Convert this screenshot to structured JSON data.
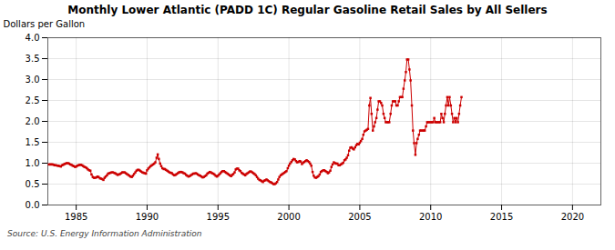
{
  "chart_data": {
    "type": "line",
    "title": "Monthly Lower Atlantic (PADD 1C) Regular Gasoline Retail Sales by All Sellers",
    "y_label": "Dollars per Gallon",
    "annotations": [
      "Source: U.S. Energy Information Administration"
    ],
    "color": "#CC0000",
    "marker": "square",
    "line_style": "solid",
    "grid": true,
    "xlim": [
      1983.0,
      2022.0
    ],
    "ylim": [
      0.0,
      4.0
    ],
    "xticks": [
      1985,
      1990,
      1995,
      2000,
      2005,
      2010,
      2015,
      2020
    ],
    "yticks": [
      {
        "value": 0.0,
        "label": "0.0"
      },
      0.5,
      {
        "value": 1.0,
        "label": "1.0"
      },
      1.5,
      {
        "value": 2.0,
        "label": "2.0"
      },
      2.5,
      {
        "value": 3.0,
        "label": "3.0"
      },
      3.5,
      {
        "value": 4.0,
        "label": "4.0"
      }
    ],
    "x": [
      1983.08,
      1983.17,
      1983.25,
      1983.33,
      1983.42,
      1983.5,
      1983.58,
      1983.67,
      1983.75,
      1983.83,
      1983.92,
      1984.0,
      1984.08,
      1984.17,
      1984.25,
      1984.33,
      1984.42,
      1984.5,
      1984.58,
      1984.67,
      1984.75,
      1984.83,
      1984.92,
      1985.0,
      1985.08,
      1985.17,
      1985.25,
      1985.33,
      1985.42,
      1985.5,
      1985.58,
      1985.67,
      1985.75,
      1985.83,
      1985.92,
      1986.0,
      1986.08,
      1986.17,
      1986.25,
      1986.33,
      1986.42,
      1986.5,
      1986.58,
      1986.67,
      1986.75,
      1986.83,
      1986.92,
      1987.0,
      1987.08,
      1987.17,
      1987.25,
      1987.33,
      1987.42,
      1987.5,
      1987.58,
      1987.67,
      1987.75,
      1987.83,
      1987.92,
      1988.0,
      1988.08,
      1988.17,
      1988.25,
      1988.33,
      1988.42,
      1988.5,
      1988.58,
      1988.67,
      1988.75,
      1988.83,
      1988.92,
      1989.0,
      1989.08,
      1989.17,
      1989.25,
      1989.33,
      1989.42,
      1989.5,
      1989.58,
      1989.67,
      1989.75,
      1989.83,
      1989.92,
      1990.0,
      1990.08,
      1990.17,
      1990.25,
      1990.33,
      1990.42,
      1990.5,
      1990.58,
      1990.67,
      1990.75,
      1990.83,
      1990.92,
      1991.0,
      1991.08,
      1991.17,
      1991.25,
      1991.33,
      1991.42,
      1991.5,
      1991.58,
      1991.67,
      1991.75,
      1991.83,
      1991.92,
      1992.0,
      1992.08,
      1992.17,
      1992.25,
      1992.33,
      1992.42,
      1992.5,
      1992.58,
      1992.67,
      1992.75,
      1992.83,
      1992.92,
      1993.0,
      1993.08,
      1993.17,
      1993.25,
      1993.33,
      1993.42,
      1993.5,
      1993.58,
      1993.67,
      1993.75,
      1993.83,
      1993.92,
      1994.0,
      1994.08,
      1994.17,
      1994.25,
      1994.33,
      1994.42,
      1994.5,
      1994.58,
      1994.67,
      1994.75,
      1994.83,
      1994.92,
      1995.0,
      1995.08,
      1995.17,
      1995.25,
      1995.33,
      1995.42,
      1995.5,
      1995.58,
      1995.67,
      1995.75,
      1995.83,
      1995.92,
      1996.0,
      1996.08,
      1996.17,
      1996.25,
      1996.33,
      1996.42,
      1996.5,
      1996.58,
      1996.67,
      1996.75,
      1996.83,
      1996.92,
      1997.0,
      1997.08,
      1997.17,
      1997.25,
      1997.33,
      1997.42,
      1997.5,
      1997.58,
      1997.67,
      1997.75,
      1997.83,
      1997.92,
      1998.0,
      1998.08,
      1998.17,
      1998.25,
      1998.33,
      1998.42,
      1998.5,
      1998.58,
      1998.67,
      1998.75,
      1998.83,
      1998.92,
      1999.0,
      1999.08,
      1999.17,
      1999.25,
      1999.33,
      1999.42,
      1999.5,
      1999.58,
      1999.67,
      1999.75,
      1999.83,
      1999.92,
      2000.0,
      2000.08,
      2000.17,
      2000.25,
      2000.33,
      2000.42,
      2000.5,
      2000.58,
      2000.67,
      2000.75,
      2000.83,
      2000.92,
      2001.0,
      2001.08,
      2001.17,
      2001.25,
      2001.33,
      2001.42,
      2001.5,
      2001.58,
      2001.67,
      2001.75,
      2001.83,
      2001.92,
      2002.0,
      2002.08,
      2002.17,
      2002.25,
      2002.33,
      2002.42,
      2002.5,
      2002.58,
      2002.67,
      2002.75,
      2002.83,
      2002.92,
      2003.0,
      2003.08,
      2003.17,
      2003.25,
      2003.33,
      2003.42,
      2003.5,
      2003.58,
      2003.67,
      2003.75,
      2003.83,
      2003.92,
      2004.0,
      2004.08,
      2004.17,
      2004.25,
      2004.33,
      2004.42,
      2004.5,
      2004.58,
      2004.67,
      2004.75,
      2004.83,
      2004.92,
      2005.0,
      2005.08,
      2005.17,
      2005.25,
      2005.33,
      2005.42,
      2005.5,
      2005.58,
      2005.67,
      2005.75,
      2005.83,
      2005.92,
      2006.0,
      2006.08,
      2006.17,
      2006.25,
      2006.33,
      2006.42,
      2006.5,
      2006.58,
      2006.67,
      2006.75,
      2006.83,
      2006.92,
      2007.0,
      2007.08,
      2007.17,
      2007.25,
      2007.33,
      2007.42,
      2007.5,
      2007.58,
      2007.67,
      2007.75,
      2007.83,
      2007.92,
      2008.0,
      2008.08,
      2008.17,
      2008.25,
      2008.33,
      2008.42,
      2008.5,
      2008.58,
      2008.67,
      2008.75,
      2008.83,
      2008.92,
      2009.0,
      2009.08,
      2009.17,
      2009.25,
      2009.33,
      2009.42,
      2009.5,
      2009.58,
      2009.67,
      2009.75,
      2009.83,
      2009.92,
      2010.0,
      2010.08,
      2010.17,
      2010.25,
      2010.33,
      2010.42,
      2010.5,
      2010.58,
      2010.67,
      2010.75,
      2010.83,
      2010.92,
      2011.0,
      2011.08,
      2011.17,
      2011.25,
      2011.33,
      2011.42,
      2011.5,
      2011.58,
      2011.67,
      2011.75,
      2011.83,
      2011.92,
      2012.0,
      2012.08,
      2012.17
    ],
    "values": [
      0.97,
      0.97,
      0.97,
      0.97,
      0.96,
      0.95,
      0.95,
      0.94,
      0.94,
      0.93,
      0.92,
      0.95,
      0.96,
      0.98,
      0.99,
      1.0,
      1.0,
      0.99,
      0.97,
      0.96,
      0.94,
      0.93,
      0.91,
      0.92,
      0.94,
      0.95,
      0.96,
      0.96,
      0.95,
      0.93,
      0.91,
      0.9,
      0.88,
      0.85,
      0.83,
      0.82,
      0.73,
      0.67,
      0.65,
      0.65,
      0.66,
      0.68,
      0.67,
      0.64,
      0.63,
      0.62,
      0.6,
      0.65,
      0.68,
      0.71,
      0.75,
      0.76,
      0.77,
      0.78,
      0.78,
      0.77,
      0.76,
      0.74,
      0.72,
      0.73,
      0.74,
      0.76,
      0.78,
      0.78,
      0.78,
      0.76,
      0.74,
      0.72,
      0.7,
      0.68,
      0.67,
      0.7,
      0.74,
      0.78,
      0.82,
      0.84,
      0.84,
      0.82,
      0.8,
      0.78,
      0.77,
      0.76,
      0.75,
      0.83,
      0.87,
      0.9,
      0.93,
      0.95,
      0.97,
      0.99,
      1.02,
      1.13,
      1.21,
      1.1,
      0.99,
      0.93,
      0.88,
      0.86,
      0.86,
      0.84,
      0.82,
      0.8,
      0.78,
      0.77,
      0.76,
      0.73,
      0.71,
      0.72,
      0.74,
      0.76,
      0.78,
      0.79,
      0.79,
      0.78,
      0.76,
      0.75,
      0.72,
      0.7,
      0.68,
      0.69,
      0.71,
      0.73,
      0.75,
      0.75,
      0.76,
      0.75,
      0.73,
      0.71,
      0.7,
      0.68,
      0.66,
      0.67,
      0.69,
      0.71,
      0.75,
      0.77,
      0.79,
      0.78,
      0.76,
      0.75,
      0.73,
      0.7,
      0.68,
      0.7,
      0.73,
      0.76,
      0.79,
      0.81,
      0.81,
      0.79,
      0.77,
      0.75,
      0.73,
      0.71,
      0.69,
      0.72,
      0.74,
      0.78,
      0.85,
      0.87,
      0.87,
      0.83,
      0.81,
      0.77,
      0.75,
      0.73,
      0.71,
      0.74,
      0.76,
      0.78,
      0.8,
      0.8,
      0.78,
      0.76,
      0.74,
      0.71,
      0.67,
      0.63,
      0.6,
      0.59,
      0.57,
      0.55,
      0.58,
      0.59,
      0.61,
      0.59,
      0.57,
      0.55,
      0.54,
      0.52,
      0.5,
      0.5,
      0.52,
      0.55,
      0.61,
      0.67,
      0.71,
      0.73,
      0.75,
      0.77,
      0.79,
      0.81,
      0.88,
      0.94,
      0.99,
      1.03,
      1.07,
      1.1,
      1.09,
      1.05,
      1.02,
      1.03,
      1.05,
      1.04,
      0.98,
      1.01,
      1.03,
      1.05,
      1.07,
      1.05,
      1.03,
      0.99,
      0.94,
      0.79,
      0.7,
      0.66,
      0.65,
      0.67,
      0.69,
      0.73,
      0.79,
      0.81,
      0.83,
      0.83,
      0.81,
      0.79,
      0.76,
      0.78,
      0.82,
      0.91,
      0.97,
      1.02,
      1.0,
      0.99,
      0.99,
      0.95,
      0.95,
      0.97,
      0.99,
      1.01,
      1.07,
      1.09,
      1.13,
      1.19,
      1.3,
      1.37,
      1.38,
      1.35,
      1.33,
      1.38,
      1.43,
      1.46,
      1.45,
      1.49,
      1.53,
      1.58,
      1.68,
      1.76,
      1.78,
      1.8,
      1.82,
      2.38,
      2.56,
      2.18,
      1.78,
      1.88,
      1.98,
      2.08,
      2.28,
      2.48,
      2.48,
      2.44,
      2.38,
      2.18,
      2.08,
      1.98,
      1.98,
      1.98,
      1.98,
      2.18,
      2.38,
      2.48,
      2.48,
      2.48,
      2.38,
      2.38,
      2.48,
      2.58,
      2.58,
      2.58,
      2.78,
      2.98,
      3.18,
      3.48,
      3.48,
      3.24,
      2.98,
      2.38,
      1.78,
      1.48,
      1.2,
      1.48,
      1.58,
      1.68,
      1.78,
      1.78,
      1.78,
      1.78,
      1.78,
      1.88,
      1.98,
      1.98,
      1.98,
      1.98,
      1.98,
      1.98,
      2.08,
      1.98,
      1.98,
      1.98,
      1.98,
      1.98,
      2.18,
      2.08,
      1.98,
      2.18,
      2.38,
      2.58,
      2.38,
      2.58,
      2.38,
      2.18,
      1.98,
      2.08,
      1.98,
      2.08,
      1.98,
      2.18,
      2.38,
      2.58
    ]
  }
}
